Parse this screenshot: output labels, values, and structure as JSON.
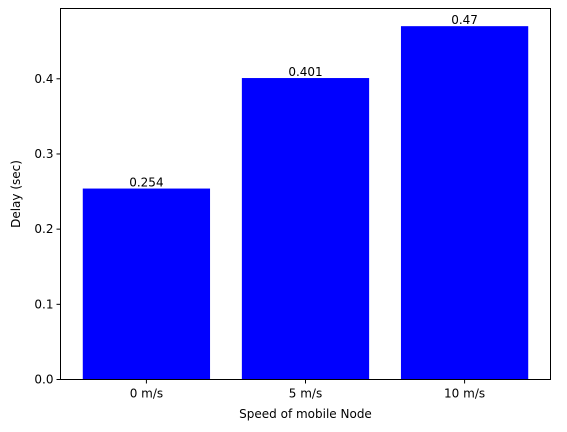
{
  "chart_data": {
    "type": "bar",
    "title": "",
    "xlabel": "Speed of mobile Node",
    "ylabel": "Delay (sec)",
    "categories": [
      "0 m/s",
      "5 m/s",
      "10 m/s"
    ],
    "values": [
      0.254,
      0.401,
      0.47
    ],
    "data_labels": [
      "0.254",
      "0.401",
      "0.47"
    ],
    "ylim": [
      0,
      0.4935
    ],
    "yticks": [
      0.0,
      0.1,
      0.2,
      0.3,
      0.4
    ],
    "ytick_labels": [
      "0.0",
      "0.1",
      "0.2",
      "0.3",
      "0.4"
    ],
    "bar_color": "#0000ff",
    "grid": false,
    "legend": "none"
  }
}
